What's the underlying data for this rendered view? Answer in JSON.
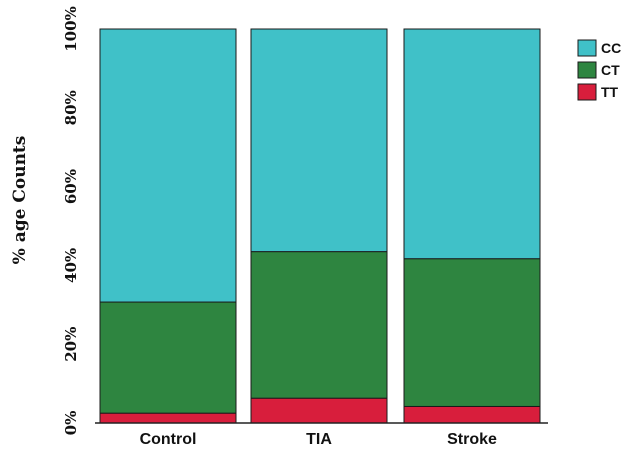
{
  "chart_data": {
    "type": "bar",
    "stacked": true,
    "percent": true,
    "categories": [
      "Control",
      "TIA",
      "Stroke"
    ],
    "series": [
      {
        "name": "TT",
        "values": [
          2.5,
          6.3,
          4.2
        ],
        "color": "#d81e3c"
      },
      {
        "name": "CT",
        "values": [
          28.2,
          37.2,
          37.5
        ],
        "color": "#2e8540"
      },
      {
        "name": "CC",
        "values": [
          69.3,
          56.5,
          58.3
        ],
        "color": "#40c1c8"
      }
    ],
    "legend_order": [
      "CC",
      "CT",
      "TT"
    ],
    "ylabel": "% age Counts",
    "xlabel": "",
    "ylim": [
      0,
      100
    ],
    "yticks": [
      0,
      20,
      40,
      60,
      80,
      100
    ],
    "ytick_labels": [
      "0%",
      "20%",
      "40%",
      "60%",
      "80%",
      "100%"
    ],
    "grid": false,
    "legend_position": "top-right"
  }
}
